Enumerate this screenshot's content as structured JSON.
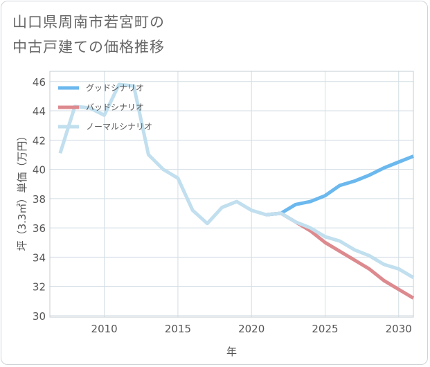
{
  "title": {
    "line1": "山口県周南市若宮町の",
    "line2": "中古戸建ての価格推移"
  },
  "chart_data": {
    "type": "line",
    "xlabel": "年",
    "ylabel": "坪（3.3㎡）単価（万円）",
    "xlim": [
      2006.3,
      2031
    ],
    "ylim": [
      29.9,
      46.7
    ],
    "xticks": [
      2010,
      2015,
      2020,
      2025,
      2030
    ],
    "yticks": [
      30,
      32,
      34,
      36,
      38,
      40,
      42,
      44,
      46
    ],
    "grid": true,
    "legend_position": "top-left",
    "series": [
      {
        "name": "グッドシナリオ",
        "color": "#6bb8ee",
        "x": [
          2021,
          2022,
          2023,
          2024,
          2025,
          2026,
          2027,
          2028,
          2029,
          2030,
          2031
        ],
        "y": [
          36.9,
          37.0,
          37.6,
          37.8,
          38.2,
          38.9,
          39.2,
          39.6,
          40.1,
          40.5,
          40.9
        ]
      },
      {
        "name": "バッドシナリオ",
        "color": "#dd8a8f",
        "x": [
          2021,
          2022,
          2023,
          2024,
          2025,
          2026,
          2027,
          2028,
          2029,
          2030,
          2031
        ],
        "y": [
          36.9,
          37.0,
          36.4,
          35.8,
          35.0,
          34.4,
          33.8,
          33.2,
          32.4,
          31.8,
          31.2
        ]
      },
      {
        "name": "ノーマルシナリオ",
        "color": "#c1dfee",
        "x": [
          2007,
          2008,
          2009,
          2010,
          2011,
          2012,
          2013,
          2014,
          2015,
          2016,
          2017,
          2018,
          2019,
          2020,
          2021,
          2022,
          2023,
          2024,
          2025,
          2026,
          2027,
          2028,
          2029,
          2030,
          2031
        ],
        "y": [
          41.1,
          44.3,
          44.2,
          43.7,
          45.8,
          45.7,
          41.0,
          40.0,
          39.4,
          37.2,
          36.3,
          37.4,
          37.8,
          37.2,
          36.9,
          37.0,
          36.4,
          36.0,
          35.4,
          35.1,
          34.5,
          34.1,
          33.5,
          33.2,
          32.6
        ]
      }
    ]
  }
}
